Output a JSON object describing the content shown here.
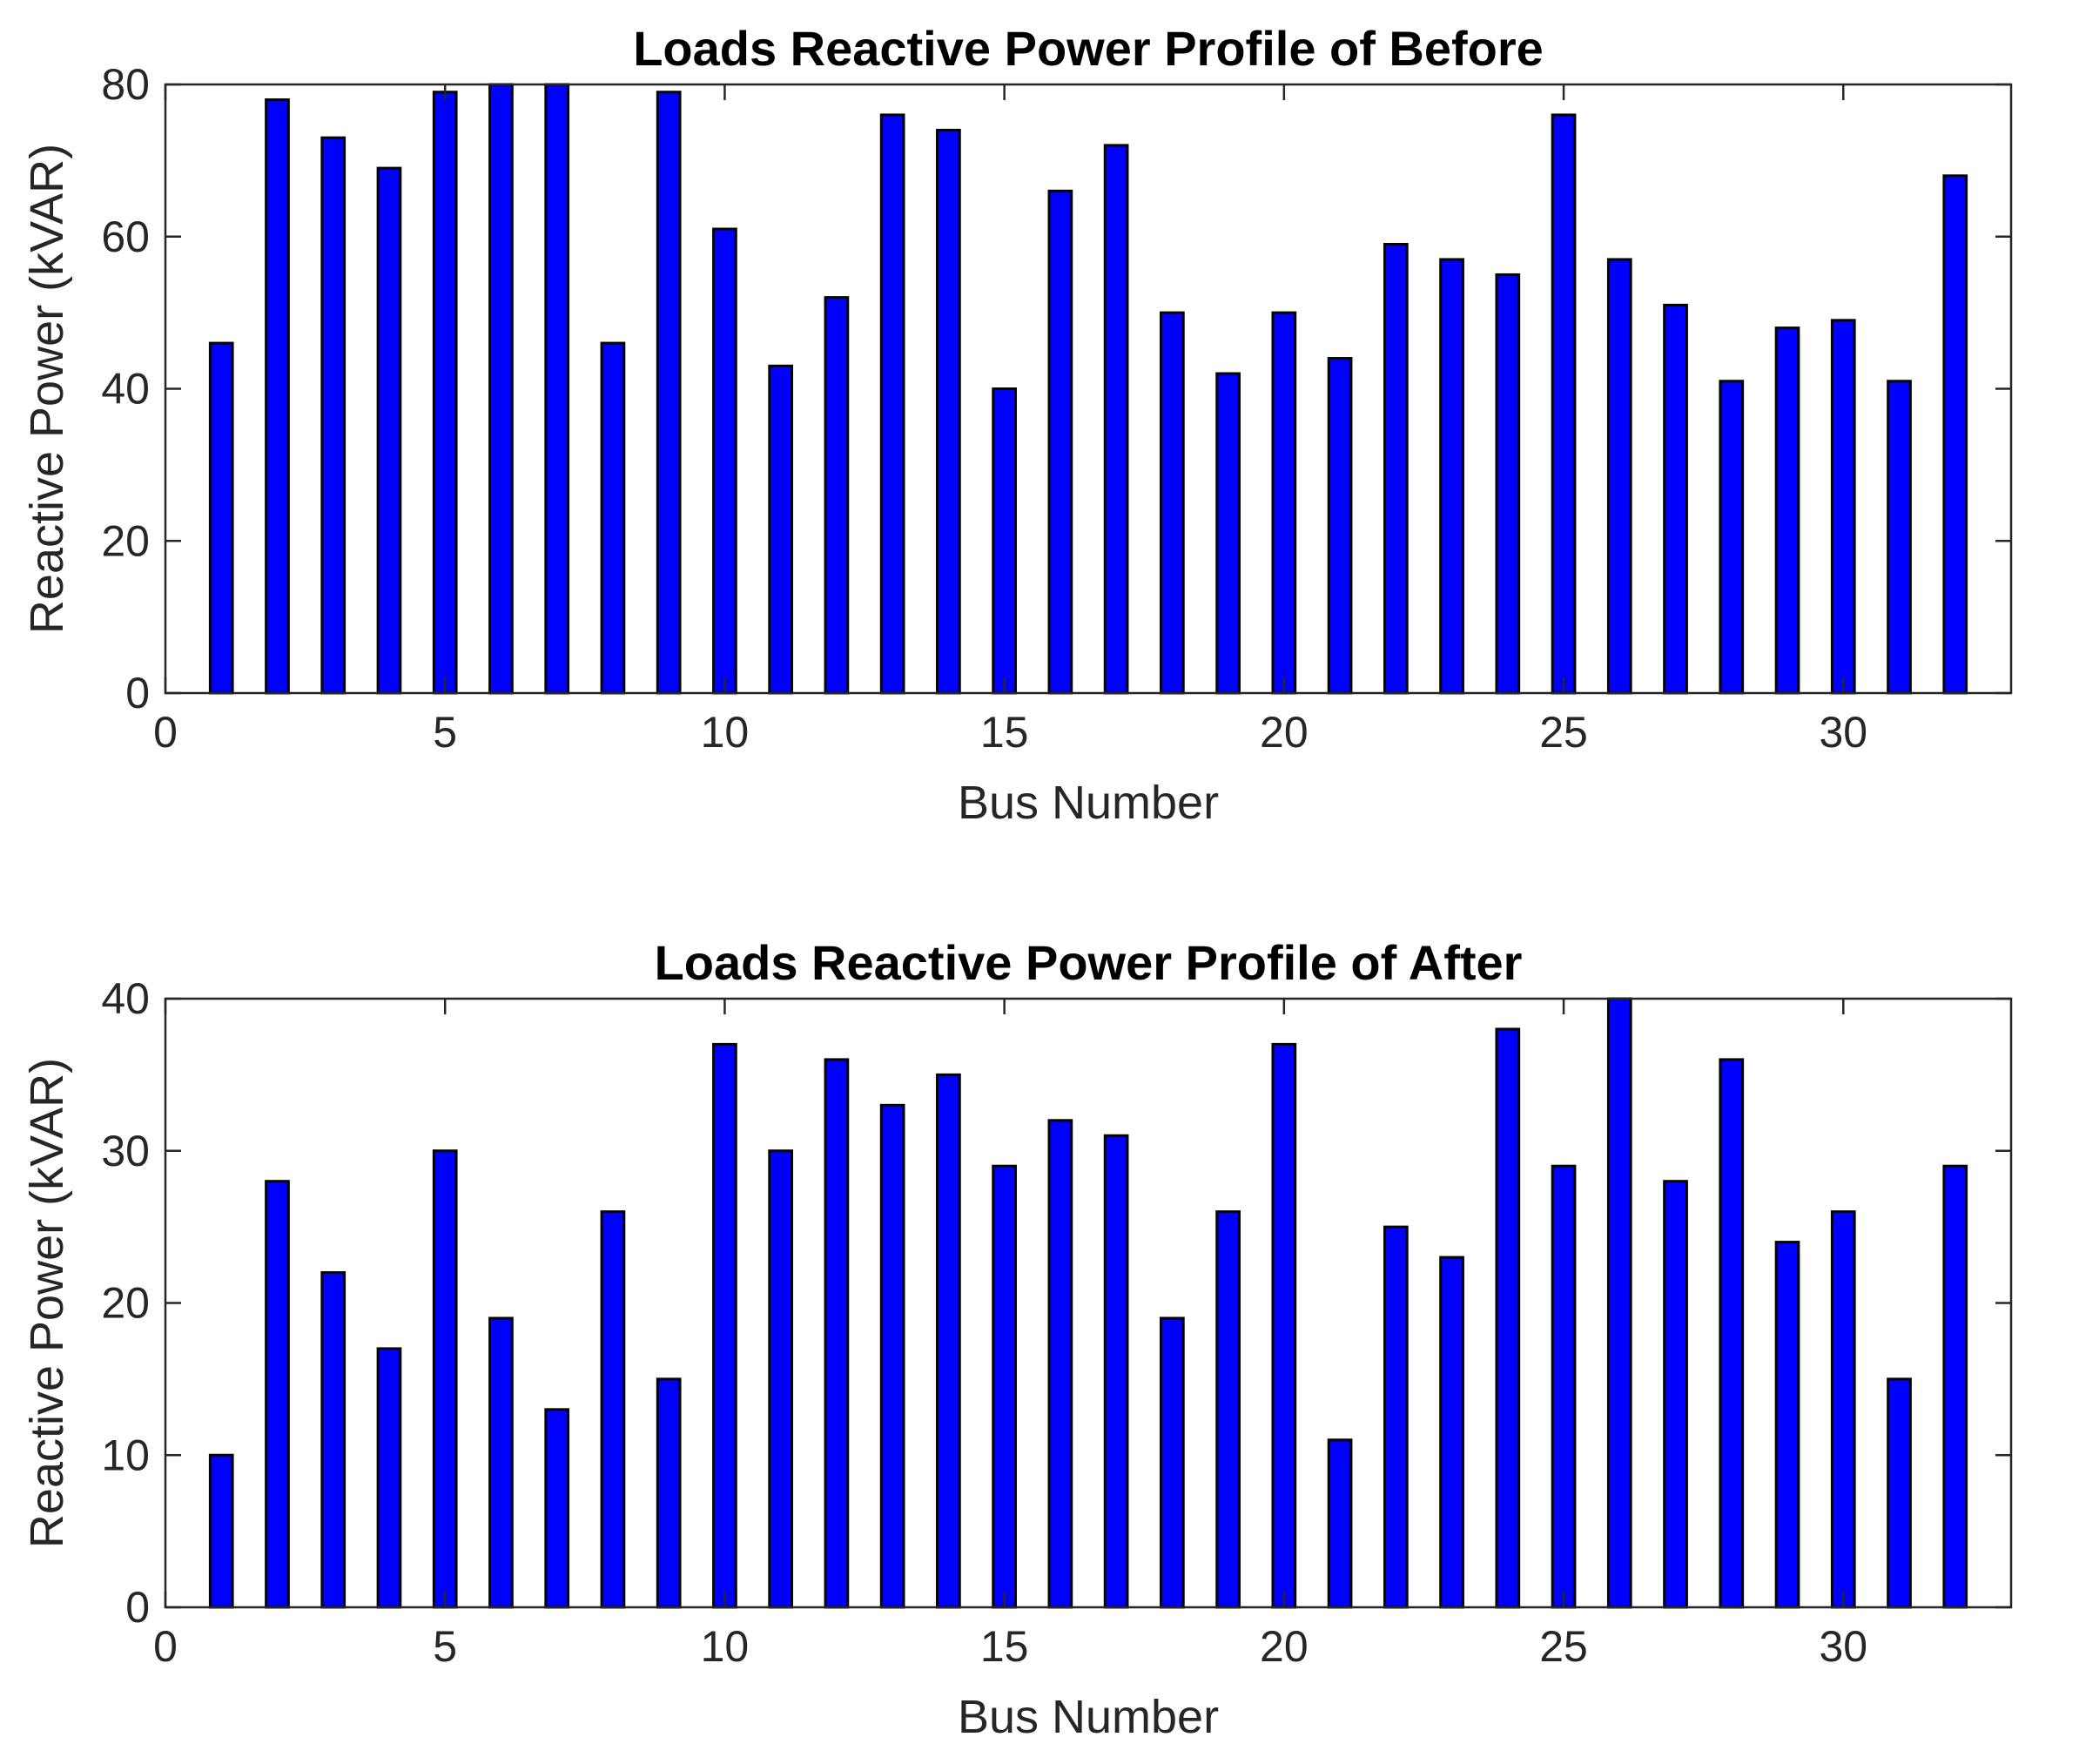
{
  "colors": {
    "bar_fill": "#0000ff",
    "bar_edge": "#000000",
    "axes": "#262626",
    "background": "#ffffff"
  },
  "chart_data": [
    {
      "type": "bar",
      "title": "Loads Reactive Power Profile of Before",
      "xlabel": "Bus Number",
      "ylabel": "Reactive Power (kVAR)",
      "xlim": [
        0,
        33
      ],
      "ylim": [
        0,
        80
      ],
      "xticks": [
        0,
        5,
        10,
        15,
        20,
        25,
        30
      ],
      "yticks": [
        0,
        20,
        40,
        60,
        80
      ],
      "grid": false,
      "x": [
        1,
        2,
        3,
        4,
        5,
        6,
        7,
        8,
        9,
        10,
        11,
        12,
        13,
        14,
        15,
        16,
        17,
        18,
        19,
        20,
        21,
        22,
        23,
        24,
        25,
        26,
        27,
        28,
        29,
        30,
        31,
        32
      ],
      "values": [
        46,
        78,
        73,
        69,
        79,
        80,
        80,
        46,
        79,
        61,
        43,
        52,
        76,
        74,
        40,
        66,
        72,
        50,
        42,
        50,
        44,
        59,
        57,
        55,
        76,
        57,
        51,
        41,
        48,
        49,
        41,
        68
      ]
    },
    {
      "type": "bar",
      "title": "Loads Reactive Power Profile of After",
      "xlabel": "Bus Number",
      "ylabel": "Reactive Power (kVAR)",
      "xlim": [
        0,
        33
      ],
      "ylim": [
        0,
        40
      ],
      "xticks": [
        0,
        5,
        10,
        15,
        20,
        25,
        30
      ],
      "yticks": [
        0,
        10,
        20,
        30,
        40
      ],
      "grid": false,
      "x": [
        1,
        2,
        3,
        4,
        5,
        6,
        7,
        8,
        9,
        10,
        11,
        12,
        13,
        14,
        15,
        16,
        17,
        18,
        19,
        20,
        21,
        22,
        23,
        24,
        25,
        26,
        27,
        28,
        29,
        30,
        31,
        32
      ],
      "values": [
        10,
        28,
        22,
        17,
        30,
        19,
        13,
        26,
        15,
        37,
        30,
        36,
        33,
        35,
        29,
        32,
        31,
        19,
        26,
        37,
        11,
        25,
        23,
        38,
        29,
        40,
        28,
        36,
        24,
        26,
        15,
        29
      ]
    }
  ]
}
